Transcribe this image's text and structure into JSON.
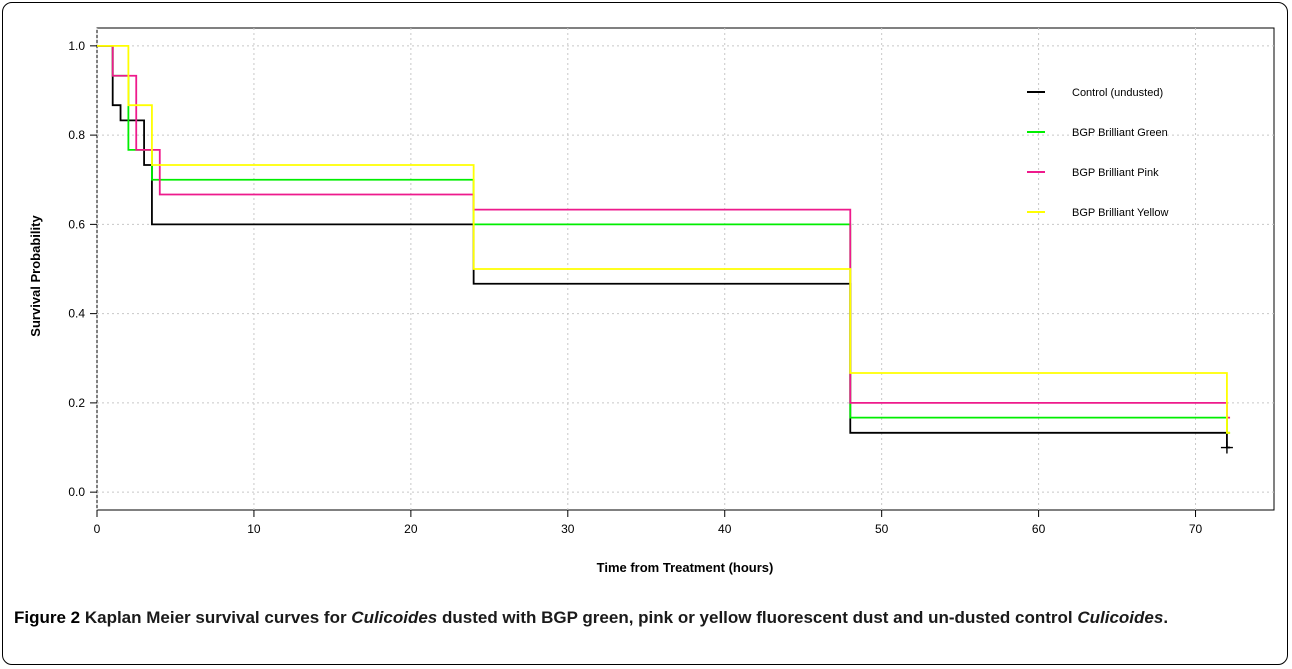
{
  "chart_data": {
    "type": "line",
    "step": true,
    "title": "",
    "xlabel": "Time from Treatment (hours)",
    "ylabel": "Survival Probability",
    "xlim": [
      0,
      75
    ],
    "ylim": [
      -0.04,
      1.04
    ],
    "xticks": [
      0,
      10,
      20,
      30,
      40,
      50,
      60,
      70
    ],
    "yticks": [
      0.0,
      0.2,
      0.4,
      0.6,
      0.8,
      1.0
    ],
    "xtick_labels": [
      "0",
      "10",
      "20",
      "30",
      "40",
      "50",
      "60",
      "70"
    ],
    "ytick_labels": [
      "0.0",
      "0.2",
      "0.4",
      "0.6",
      "0.8",
      "1.0"
    ],
    "grid": true,
    "legend_position": "top-right",
    "series": [
      {
        "name": "Control (undusted)",
        "color": "#000000",
        "x": [
          0,
          1,
          1.5,
          3,
          3.5,
          24,
          48,
          72
        ],
        "y": [
          1.0,
          0.867,
          0.833,
          0.733,
          0.6,
          0.467,
          0.133,
          0.1
        ],
        "censor_x": 72,
        "censor_y": 0.1
      },
      {
        "name": "BGP Brilliant Green",
        "color": "#00ee00",
        "x": [
          0,
          1,
          2,
          3.5,
          24,
          48,
          72
        ],
        "y": [
          1.0,
          0.933,
          0.767,
          0.7,
          0.6,
          0.167,
          0.133
        ]
      },
      {
        "name": "BGP Brilliant Pink",
        "color": "#ee1a8c",
        "x": [
          0,
          1,
          2.5,
          4,
          24,
          48,
          72
        ],
        "y": [
          1.0,
          0.933,
          0.767,
          0.667,
          0.633,
          0.2,
          0.167
        ]
      },
      {
        "name": "BGP Brilliant Yellow",
        "color": "#ffff00",
        "x": [
          0,
          2,
          3.5,
          24,
          48,
          72
        ],
        "y": [
          1.0,
          0.867,
          0.733,
          0.5,
          0.267,
          0.133
        ]
      }
    ]
  },
  "caption": {
    "lead": "Figure 2",
    "text_1": " Kaplan Meier survival curves for ",
    "italic_1": "Culicoides",
    "text_2": " dusted with BGP green, pink or yellow fluorescent dust and un-dusted control ",
    "italic_2": "Culicoides",
    "text_3": "."
  }
}
